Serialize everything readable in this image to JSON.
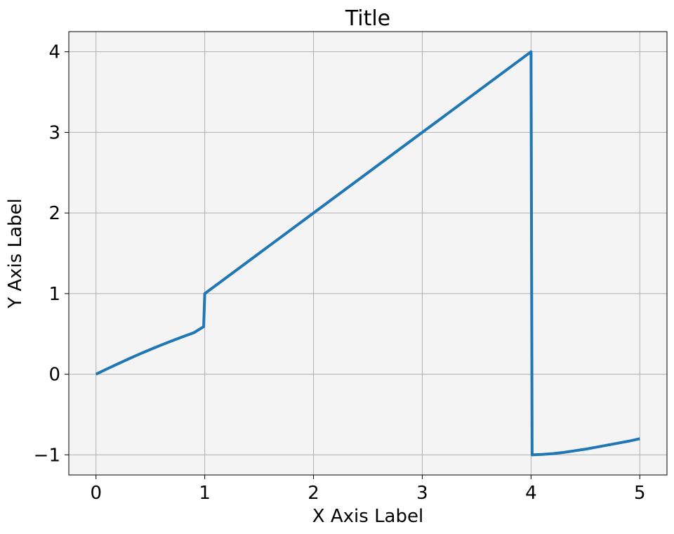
{
  "chart_data": {
    "type": "line",
    "title": "Title",
    "xlabel": "X Axis Label",
    "ylabel": "Y Axis Label",
    "xlim": [
      -0.25,
      5.25
    ],
    "ylim": [
      -1.25,
      4.25
    ],
    "x_ticks": [
      0,
      1,
      2,
      3,
      4,
      5
    ],
    "y_ticks": [
      -1,
      0,
      1,
      2,
      3,
      4
    ],
    "x_tick_labels": [
      "0",
      "1",
      "2",
      "3",
      "4",
      "5"
    ],
    "y_tick_labels": [
      "−1",
      "0",
      "1",
      "2",
      "3",
      "4"
    ],
    "grid": true,
    "legend": "none",
    "colors": {
      "line": "#1f77b4",
      "plot_background": "#f4f4f4",
      "grid": "#b0b0b0"
    },
    "series": [
      {
        "x": [
          0,
          0.1,
          0.2,
          0.3,
          0.4,
          0.5,
          0.6,
          0.7,
          0.8,
          0.9,
          0.99,
          1.0,
          1.5,
          2.0,
          2.5,
          3.0,
          3.5,
          3.99,
          4.0,
          4.01,
          4.1,
          4.2,
          4.3,
          4.4,
          4.5,
          4.6,
          4.7,
          4.8,
          4.9,
          5.0
        ],
        "y": [
          0,
          0.065,
          0.128,
          0.19,
          0.25,
          0.307,
          0.362,
          0.415,
          0.466,
          0.515,
          0.59,
          1.0,
          1.5,
          2.0,
          2.5,
          3.0,
          3.5,
          3.99,
          4.0,
          -1.0,
          -0.995,
          -0.985,
          -0.97,
          -0.95,
          -0.93,
          -0.905,
          -0.88,
          -0.855,
          -0.83,
          -0.8
        ]
      }
    ]
  }
}
